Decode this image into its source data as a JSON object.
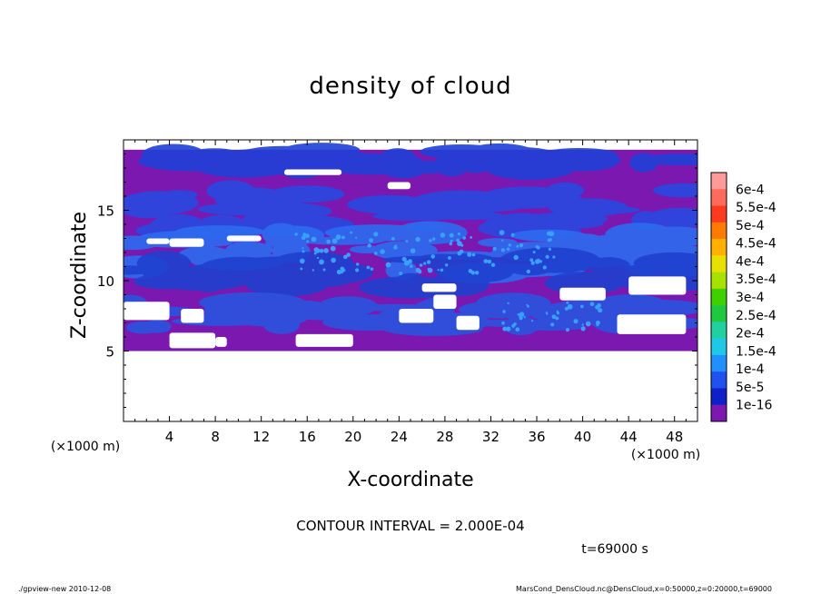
{
  "chart_data": {
    "type": "heatmap",
    "title": "density of cloud",
    "xlabel": "X-coordinate",
    "ylabel": "Z-coordinate",
    "x_unit": "(×1000 m)",
    "y_unit": "(×1000 m)",
    "x_ticks": [
      4,
      8,
      12,
      16,
      20,
      24,
      28,
      32,
      36,
      40,
      44,
      48
    ],
    "y_ticks": [
      5,
      10,
      15
    ],
    "xlim": [
      0,
      50
    ],
    "ylim": [
      0,
      20
    ],
    "contour_interval": "CONTOUR INTERVAL = 2.000E-04",
    "time_label": "t=69000 s",
    "colorbar": {
      "labels": [
        "6e-4",
        "5.5e-4",
        "5e-4",
        "4.5e-4",
        "4e-4",
        "3.5e-4",
        "3e-4",
        "2.5e-4",
        "2e-4",
        "1.5e-4",
        "1e-4",
        "5e-5",
        "1e-16"
      ],
      "colors": [
        "#ff9a9a",
        "#ff6a5a",
        "#ff3a1e",
        "#ff7a00",
        "#ffb000",
        "#e8e000",
        "#a8e000",
        "#40d000",
        "#20c840",
        "#20d0a0",
        "#20c8e8",
        "#2090ff",
        "#2050f0",
        "#1020c8",
        "#7a18b0"
      ]
    },
    "field": {
      "background_color": "#7a18b0",
      "bands": [
        {
          "z_range": [
            17.8,
            19.3
          ],
          "level": "5e-5",
          "color": "#2040d8"
        },
        {
          "z_range": [
            13.5,
            16.5
          ],
          "level": "5e-5",
          "color": "#2848e0"
        },
        {
          "z_range": [
            10.5,
            13.5
          ],
          "level": "1e-4",
          "color": "#2c6cf0"
        },
        {
          "z_range": [
            9.5,
            11.5
          ],
          "level": "5e-5",
          "color": "#2040d0"
        },
        {
          "z_range": [
            6.5,
            8.5
          ],
          "level": "5e-5",
          "color": "#2a54e0"
        }
      ],
      "data_region_z": [
        5,
        19.3
      ]
    }
  },
  "footer": {
    "left": "./gpview-new   2010-12-08",
    "right": "MarsCond_DensCloud.nc@DensCloud,x=0:50000,z=0:20000,t=69000"
  }
}
